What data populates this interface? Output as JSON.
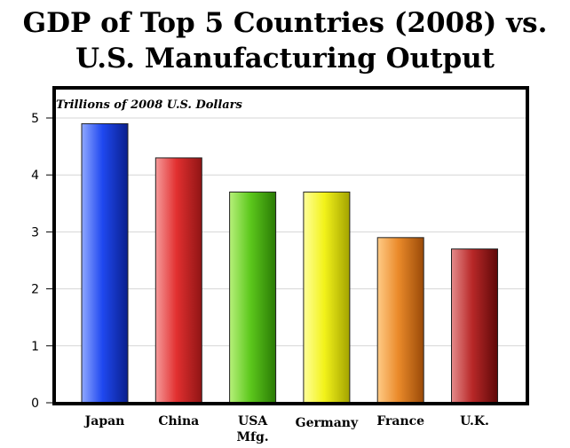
{
  "title_lines": [
    "GDP of Top 5 Countries (2008) vs.",
    "U.S. Manufacturing Output"
  ],
  "chart_data": {
    "type": "bar",
    "title": "GDP of Top 5 Countries (2008) vs. U.S. Manufacturing Output",
    "ylabel": "Trillions of 2008 U.S. Dollars",
    "xlabel": "",
    "categories": [
      "Japan",
      "China",
      "USA Mfg.",
      "Germany",
      "France",
      "U.K."
    ],
    "category_lines": [
      [
        "Japan"
      ],
      [
        "China"
      ],
      [
        "USA",
        "Mfg."
      ],
      [
        "Germany"
      ],
      [
        "France"
      ],
      [
        "U.K."
      ]
    ],
    "values": [
      4.9,
      4.3,
      3.7,
      3.7,
      2.9,
      2.7
    ],
    "ylim": [
      0,
      5.5
    ],
    "yticks": [
      0,
      1,
      2,
      3,
      4,
      5
    ],
    "grid": true,
    "bar_colors": [
      {
        "light": "#8fa8ff",
        "mid": "#1f48f0",
        "dark": "#0a1f8c"
      },
      {
        "light": "#f59a9a",
        "mid": "#e23030",
        "dark": "#8f1414"
      },
      {
        "light": "#b6f07a",
        "mid": "#5cc81c",
        "dark": "#2a7a05"
      },
      {
        "light": "#ffff9a",
        "mid": "#f2f21a",
        "dark": "#a3a300"
      },
      {
        "light": "#ffcb86",
        "mid": "#ea8a2a",
        "dark": "#9a4a08"
      },
      {
        "light": "#e48a8a",
        "mid": "#b82828",
        "dark": "#5e0808"
      }
    ]
  }
}
